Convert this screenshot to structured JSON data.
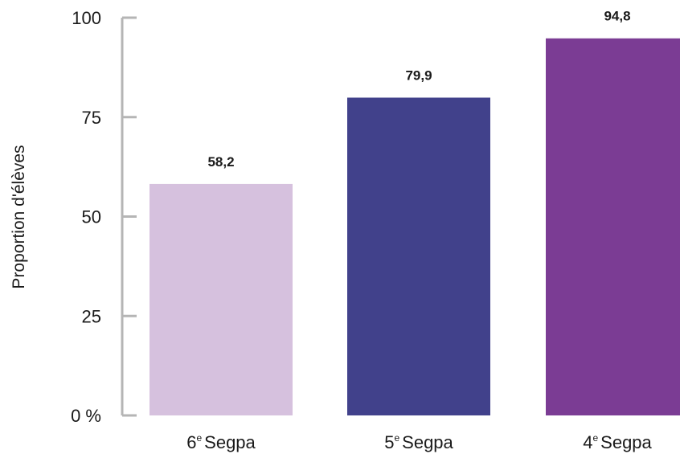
{
  "chart_data": {
    "type": "bar",
    "categories": [
      {
        "number": "6",
        "sup": "e",
        "text": "Segpa"
      },
      {
        "number": "5",
        "sup": "e",
        "text": "Segpa"
      },
      {
        "number": "4",
        "sup": "e",
        "text": "Segpa"
      }
    ],
    "values": [
      58.2,
      79.9,
      94.8
    ],
    "value_labels": [
      "58,2",
      "79,9",
      "94,8"
    ],
    "bar_colors": [
      "#d6c1de",
      "#41418b",
      "#7b3c94"
    ],
    "ylabel": "Proportion d'élèves",
    "ylim": [
      0,
      100
    ],
    "yticks": [
      0,
      25,
      50,
      75,
      100
    ],
    "ytick_labels": [
      "0 %",
      "25",
      "50",
      "75",
      "100"
    ],
    "axis_color": "#b5b5b5",
    "grid": false,
    "legend": "none"
  }
}
